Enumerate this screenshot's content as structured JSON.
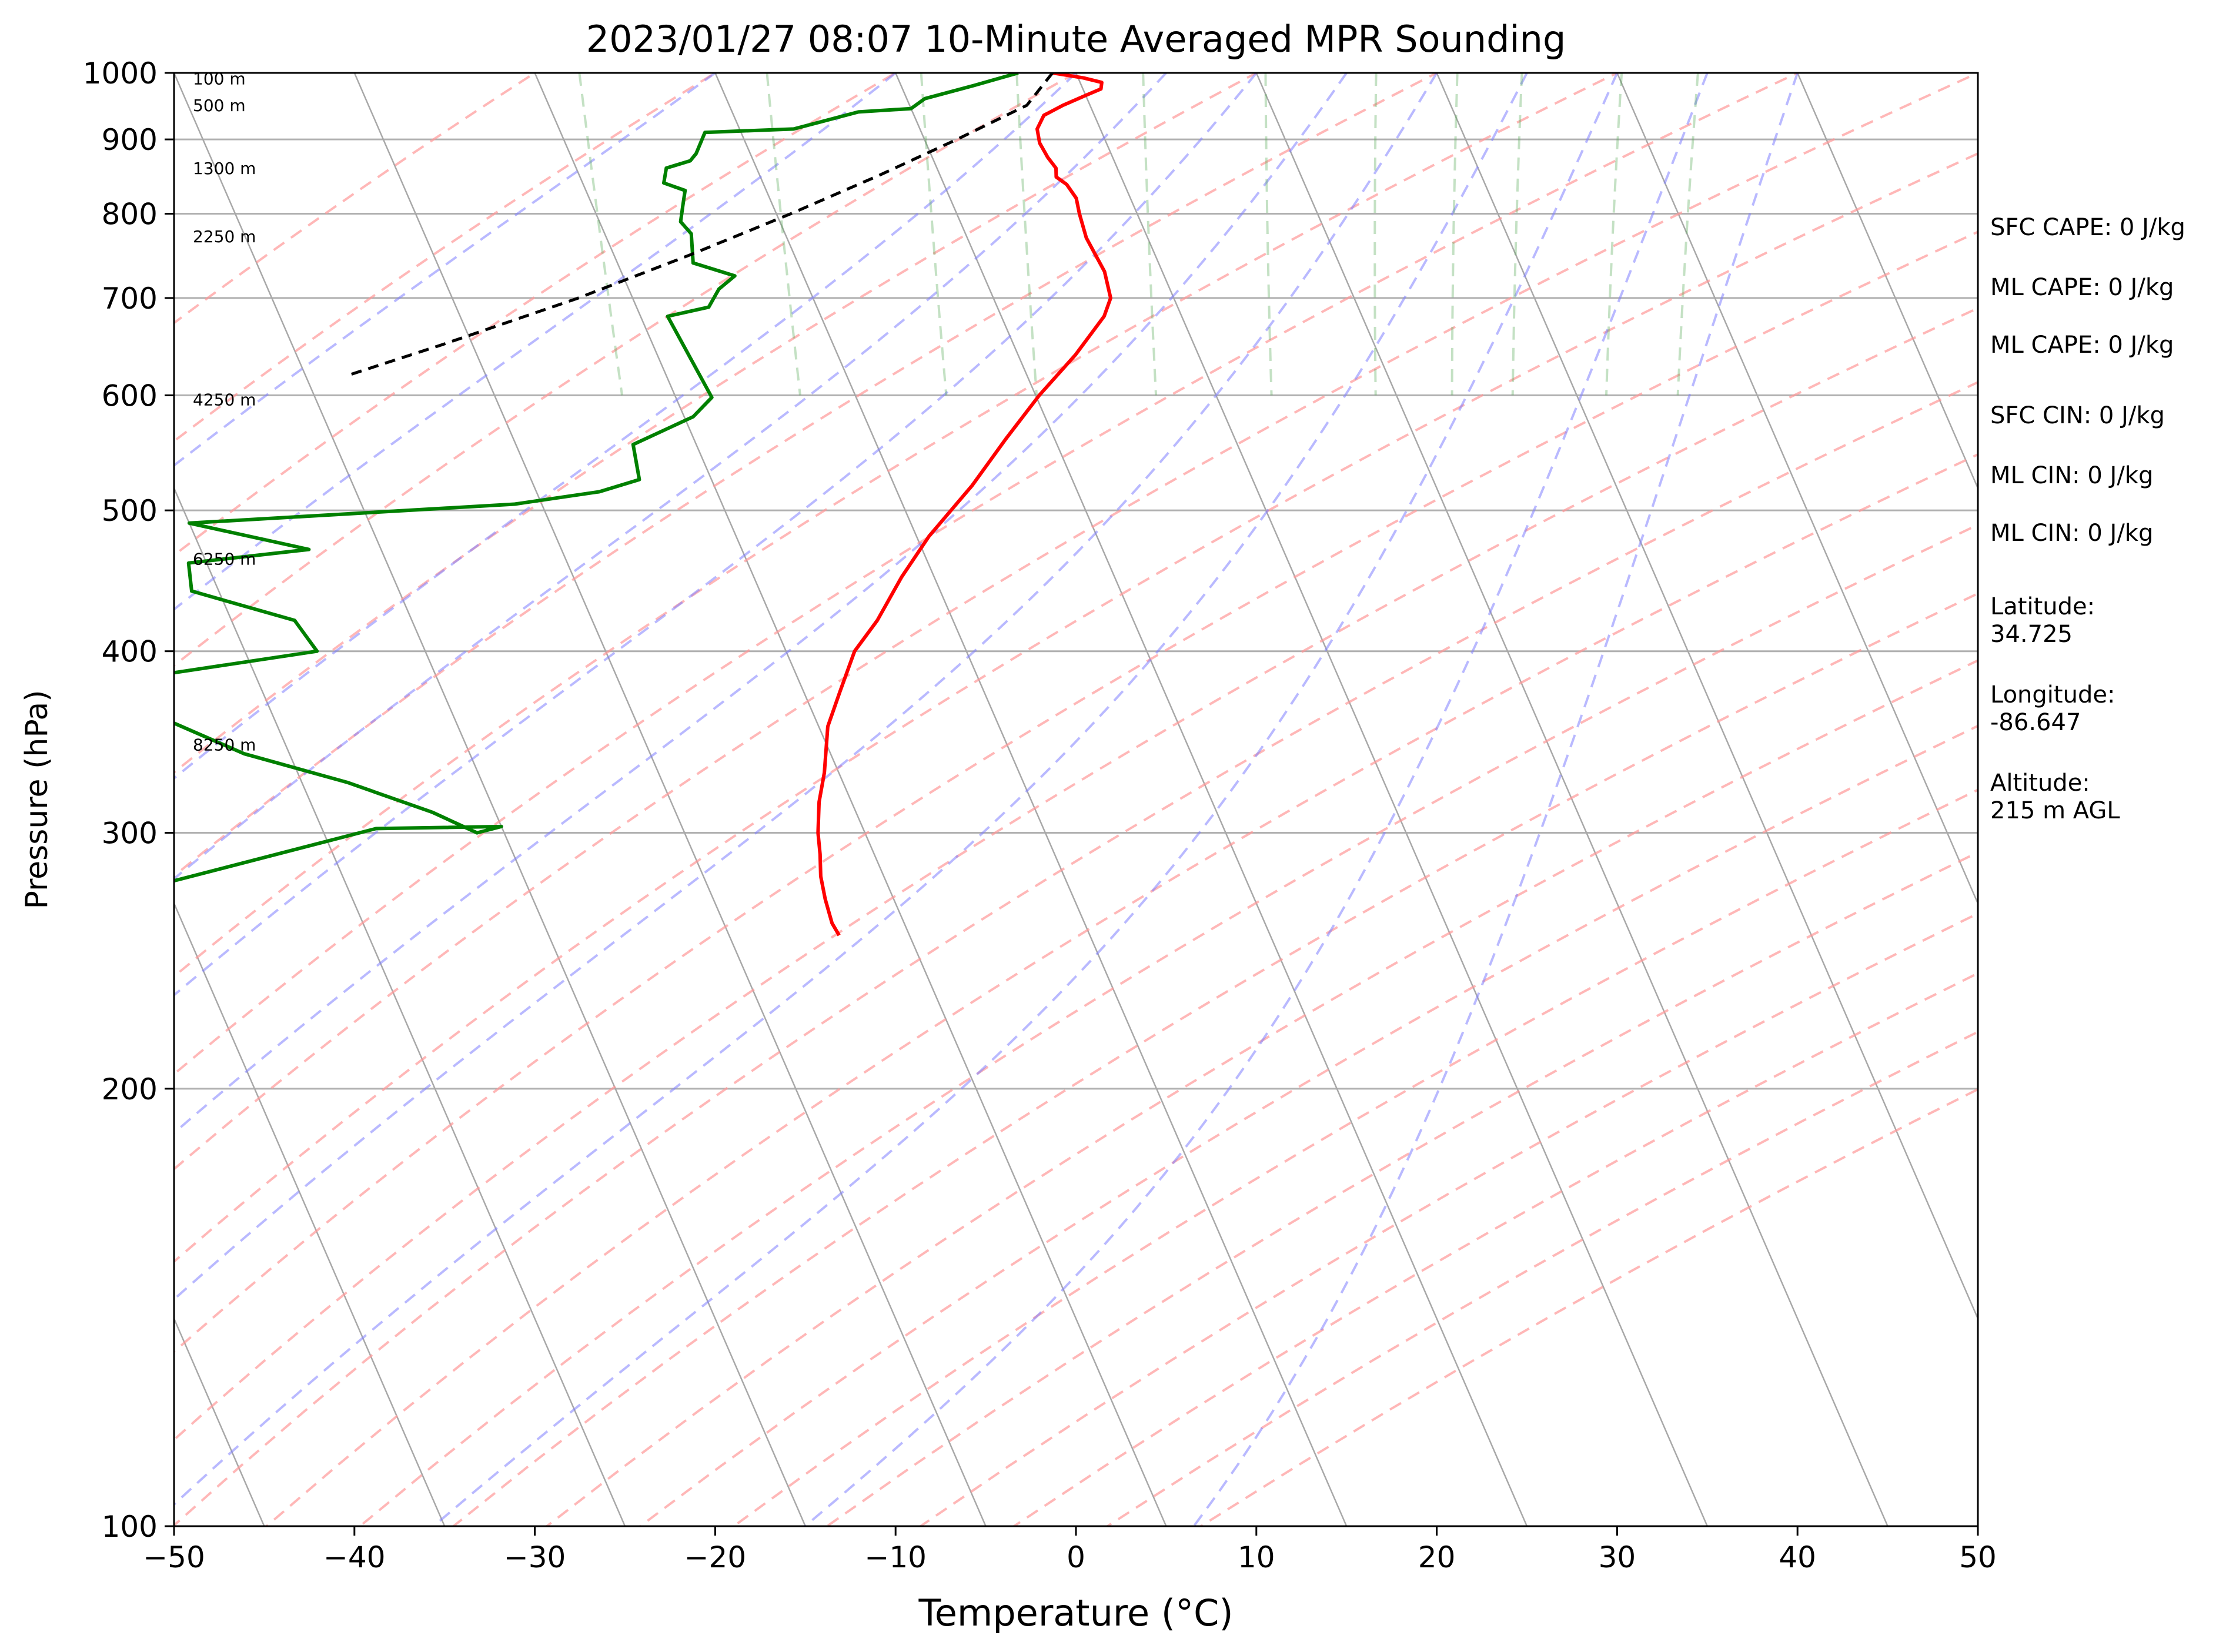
{
  "chart_data": {
    "type": "line",
    "subtype": "skew-T log-P diagram",
    "title": "2023/01/27 08:07 10-Minute Averaged MPR Sounding",
    "xlabel": "Temperature (°C)",
    "ylabel": "Pressure (hPa)",
    "xlim": [
      -50,
      50
    ],
    "ylim": [
      1000,
      100
    ],
    "yscale": "log",
    "x_ticks": [
      "−50",
      "−40",
      "−30",
      "−20",
      "−10",
      "0",
      "10",
      "20",
      "30",
      "40",
      "50"
    ],
    "y_ticks": [
      "100",
      "200",
      "300",
      "400",
      "500",
      "600",
      "700",
      "800",
      "900",
      "1000"
    ],
    "grid": true,
    "series": [
      {
        "key": "temperature",
        "color": "#ff0000",
        "x": [
          -1.3,
          0.3,
          1.2,
          1.0,
          0.0,
          -1.5,
          -2.8,
          -3.5,
          -3.7,
          -3.6,
          -3.4,
          -3.6,
          -3.2,
          -3.0,
          -3.2,
          -3.4,
          -3.2,
          -3.5,
          -4.3,
          -6.8,
          -9.8,
          -12.7,
          -15.7,
          -19.3,
          -21.8,
          -24.2,
          -26.2,
          -28.0,
          -29.5,
          -30.8,
          -31.8,
          -32.6,
          -33.0,
          -33.5,
          -33.8,
          -34.0,
          -33.9
        ],
        "y": [
          1000,
          992,
          985,
          975,
          965,
          950,
          935,
          915,
          895,
          875,
          860,
          848,
          838,
          820,
          800,
          770,
          730,
          700,
          680,
          640,
          600,
          560,
          520,
          480,
          450,
          420,
          400,
          375,
          355,
          330,
          315,
          300,
          290,
          280,
          270,
          260,
          255
        ]
      },
      {
        "key": "dewpoint",
        "color": "#008000",
        "x": [
          -3.2,
          -6.0,
          -9.0,
          -10.0,
          -13.0,
          -17.0,
          -22.0,
          -23.0,
          -23.5,
          -25.0,
          -25.5,
          -24.5,
          -25.0,
          -25.5,
          -25.2,
          -25.8,
          -23.8,
          -25.0,
          -26.0,
          -28.5,
          -28.0,
          -29.5,
          -33.5,
          -34.0,
          -36.5,
          -41.5,
          -60.0,
          -54.0,
          -61.0,
          -61.5,
          -56.5,
          -56.0,
          -72.0,
          -68.0,
          -62.5,
          -57.5,
          -53.5,
          -51.5,
          -50.0,
          -57.0,
          -75.0,
          -85.0,
          -80.0,
          -93.0
        ],
        "y": [
          1000,
          980,
          960,
          945,
          940,
          915,
          910,
          880,
          870,
          860,
          840,
          830,
          810,
          790,
          775,
          740,
          725,
          710,
          690,
          680,
          598,
          580,
          555,
          525,
          515,
          505,
          490,
          470,
          460,
          440,
          420,
          400,
          375,
          370,
          340,
          325,
          310,
          300,
          303,
          302,
          268,
          267,
          266,
          265
        ]
      },
      {
        "key": "parcel",
        "color": "#000000",
        "linestyle": "dashed",
        "x": [
          -1.3,
          -3.5,
          -8.2,
          -13.4,
          -19.2,
          -25.7,
          -33.0,
          -41.7,
          -47.5
        ],
        "y": [
          1000,
          950,
          900,
          850,
          800,
          750,
          700,
          650,
          620
        ]
      }
    ],
    "height_labels": [
      {
        "text": "100 m",
        "p": 991
      },
      {
        "text": "500 m",
        "p": 950
      },
      {
        "text": "1300 m",
        "p": 860
      },
      {
        "text": "2250 m",
        "p": 772
      },
      {
        "text": "4250 m",
        "p": 596
      },
      {
        "text": "6250 m",
        "p": 463
      },
      {
        "text": "8250 m",
        "p": 345
      }
    ],
    "annotations": [
      "SFC CAPE: 0 J/kg",
      "ML CAPE: 0 J/kg",
      "ML CAPE: 0 J/kg",
      "SFC CIN: 0 J/kg",
      "ML CIN: 0 J/kg",
      "ML CIN: 0 J/kg",
      "Latitude:",
      "34.725",
      "Longitude:",
      "-86.647",
      "Altitude:",
      "215 m AGL"
    ],
    "reference_lines": {
      "isotherms": "gray solid, skewed",
      "dry_adiabats": "red dashed",
      "moist_adiabats": "blue dashed",
      "mixing_ratio": "green dashed"
    }
  }
}
